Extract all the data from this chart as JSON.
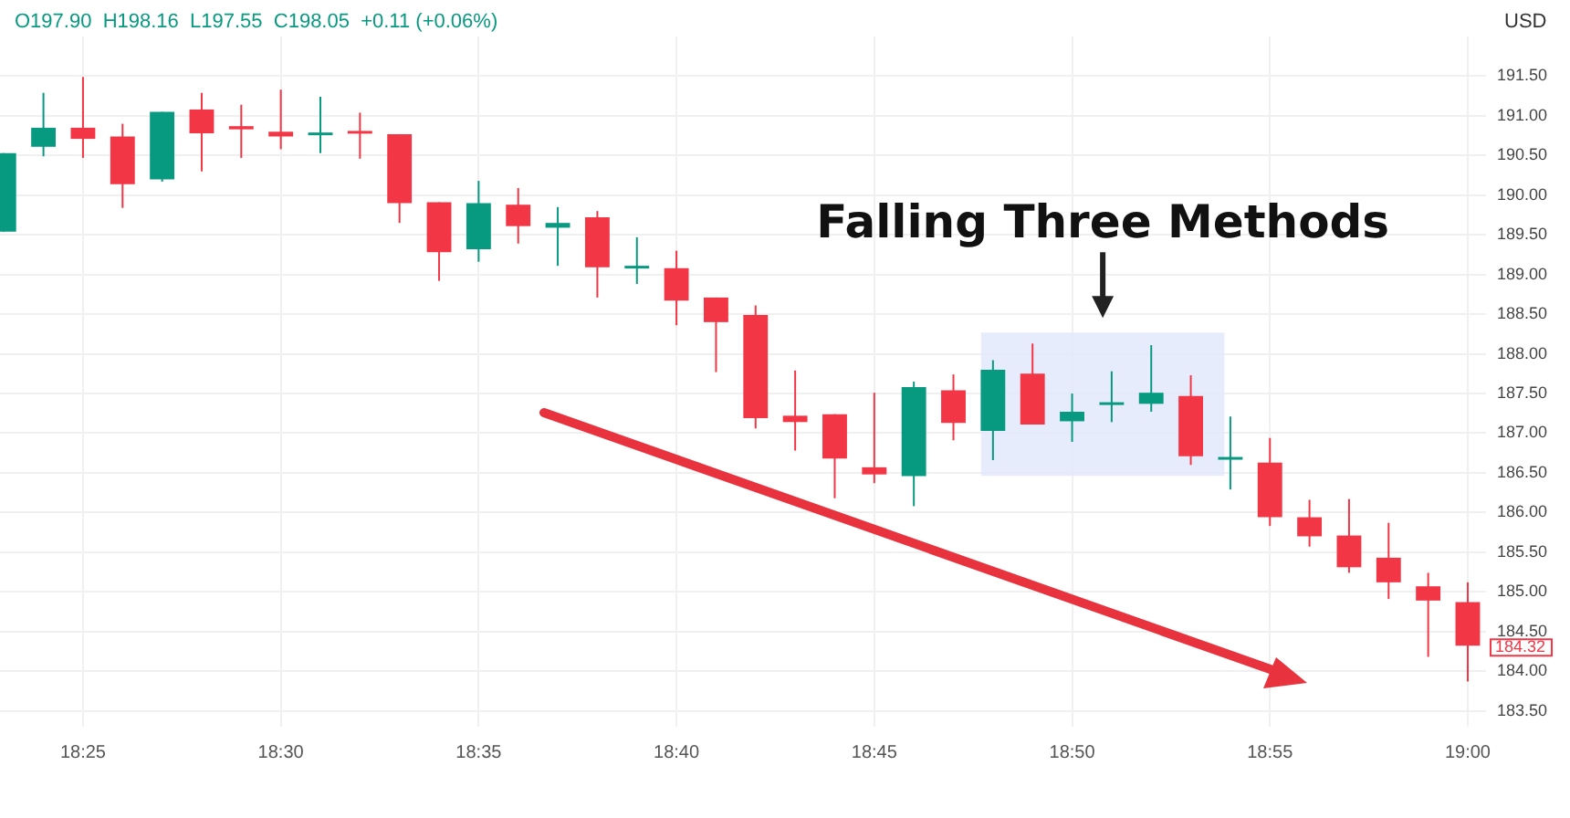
{
  "chart_data": {
    "type": "candlestick",
    "ylabel": "USD",
    "annotations": [
      "O197.90  H198.16  L197.55  C198.05  +0.11 (+0.06%)",
      {
        "text": "184.32",
        "x": 19,
        "y": 184.32
      }
    ],
    "x": [
      18.383333,
      18.4,
      18.416667,
      18.433333,
      18.45,
      18.466667,
      18.483333,
      18.5,
      18.516667,
      18.533333,
      18.55,
      18.566667,
      18.583333,
      18.6,
      18.616667,
      18.633333,
      18.65,
      18.666667,
      18.683333,
      18.7,
      18.716667,
      18.733333,
      18.75,
      18.766667,
      18.783333,
      18.8,
      18.816667,
      18.833333,
      18.85,
      18.866667,
      18.883333,
      18.9,
      18.916667,
      18.933333,
      18.95,
      18.966667,
      18.983333,
      19
    ],
    "ohlc": [
      [
        189.54,
        190.53,
        189.54,
        190.53
      ],
      [
        190.61,
        191.29,
        190.49,
        190.85
      ],
      [
        190.85,
        191.49,
        190.47,
        190.71
      ],
      [
        190.74,
        190.9,
        189.84,
        190.14
      ],
      [
        190.2,
        191.05,
        190.17,
        191.05
      ],
      [
        191.08,
        191.29,
        190.3,
        190.78
      ],
      [
        190.87,
        191.14,
        190.47,
        190.83
      ],
      [
        190.8,
        191.33,
        190.58,
        190.74
      ],
      [
        190.77,
        191.24,
        190.53,
        190.79
      ],
      [
        190.81,
        191.04,
        190.46,
        190.79
      ],
      [
        190.77,
        190.77,
        189.65,
        189.9
      ],
      [
        189.91,
        189.91,
        188.92,
        189.28
      ],
      [
        189.32,
        190.18,
        189.16,
        189.9
      ],
      [
        189.88,
        190.09,
        189.39,
        189.61
      ],
      [
        189.59,
        189.85,
        189.11,
        189.65
      ],
      [
        189.72,
        189.8,
        188.71,
        189.09
      ],
      [
        189.1,
        189.47,
        188.88,
        189.11
      ],
      [
        189.08,
        189.3,
        188.36,
        188.67
      ],
      [
        188.71,
        188.71,
        187.77,
        188.4
      ],
      [
        188.49,
        188.61,
        187.06,
        187.19
      ],
      [
        187.22,
        187.79,
        186.78,
        187.14
      ],
      [
        187.24,
        187.24,
        186.18,
        186.68
      ],
      [
        186.57,
        187.51,
        186.37,
        186.48
      ],
      [
        186.46,
        187.65,
        186.08,
        187.58
      ],
      [
        187.54,
        187.74,
        186.91,
        187.13
      ],
      [
        187.03,
        187.92,
        186.66,
        187.8
      ],
      [
        187.75,
        188.13,
        187.11,
        187.11
      ],
      [
        187.15,
        187.5,
        186.89,
        187.27
      ],
      [
        187.37,
        187.78,
        187.14,
        187.39
      ],
      [
        187.37,
        188.11,
        187.27,
        187.51
      ],
      [
        187.47,
        187.73,
        186.6,
        186.71
      ],
      [
        186.68,
        187.21,
        186.29,
        186.7
      ],
      [
        186.63,
        186.94,
        185.83,
        185.94
      ],
      [
        185.94,
        186.16,
        185.57,
        185.7
      ],
      [
        185.71,
        186.17,
        185.24,
        185.31
      ],
      [
        185.43,
        185.87,
        184.91,
        185.12
      ],
      [
        185.07,
        185.24,
        184.18,
        184.89
      ],
      [
        184.87,
        185.12,
        183.87,
        184.32
      ]
    ],
    "xlim": [
      18.3817,
      19.0077
    ],
    "xticks": [
      {
        "value": 18.416667,
        "label": "18:25"
      },
      {
        "value": 18.5,
        "label": "18:30"
      },
      {
        "value": 18.583333,
        "label": "18:35"
      },
      {
        "value": 18.666667,
        "label": "18:40"
      },
      {
        "value": 18.75,
        "label": "18:45"
      },
      {
        "value": 18.833333,
        "label": "18:50"
      },
      {
        "value": 18.916667,
        "label": "18:55"
      },
      {
        "value": 19,
        "label": "19:00"
      }
    ],
    "ylim": [
      183.3,
      192.0
    ],
    "yticks": [
      {
        "value": 183.5,
        "label": "183.50"
      },
      {
        "value": 184,
        "label": "184.00"
      },
      {
        "value": 184.5,
        "label": "184.50"
      },
      {
        "value": 185,
        "label": "185.00"
      },
      {
        "value": 185.5,
        "label": "185.50"
      },
      {
        "value": 186,
        "label": "186.00"
      },
      {
        "value": 186.5,
        "label": "186.50"
      },
      {
        "value": 187,
        "label": "187.00"
      },
      {
        "value": 187.5,
        "label": "187.50"
      },
      {
        "value": 188,
        "label": "188.00"
      },
      {
        "value": 188.5,
        "label": "188.50"
      },
      {
        "value": 189,
        "label": "189.00"
      },
      {
        "value": 189.5,
        "label": "189.50"
      },
      {
        "value": 190,
        "label": "190.00"
      },
      {
        "value": 190.5,
        "label": "190.50"
      },
      {
        "value": 191,
        "label": "191.00"
      },
      {
        "value": 191.5,
        "label": "191.50"
      }
    ],
    "bands": [
      {
        "axis": "x",
        "from": 18.795,
        "to": 18.8975,
        "label": "Falling Three Methods",
        "color": "#e3e9fb"
      }
    ],
    "grid": true,
    "legend": false
  }
}
